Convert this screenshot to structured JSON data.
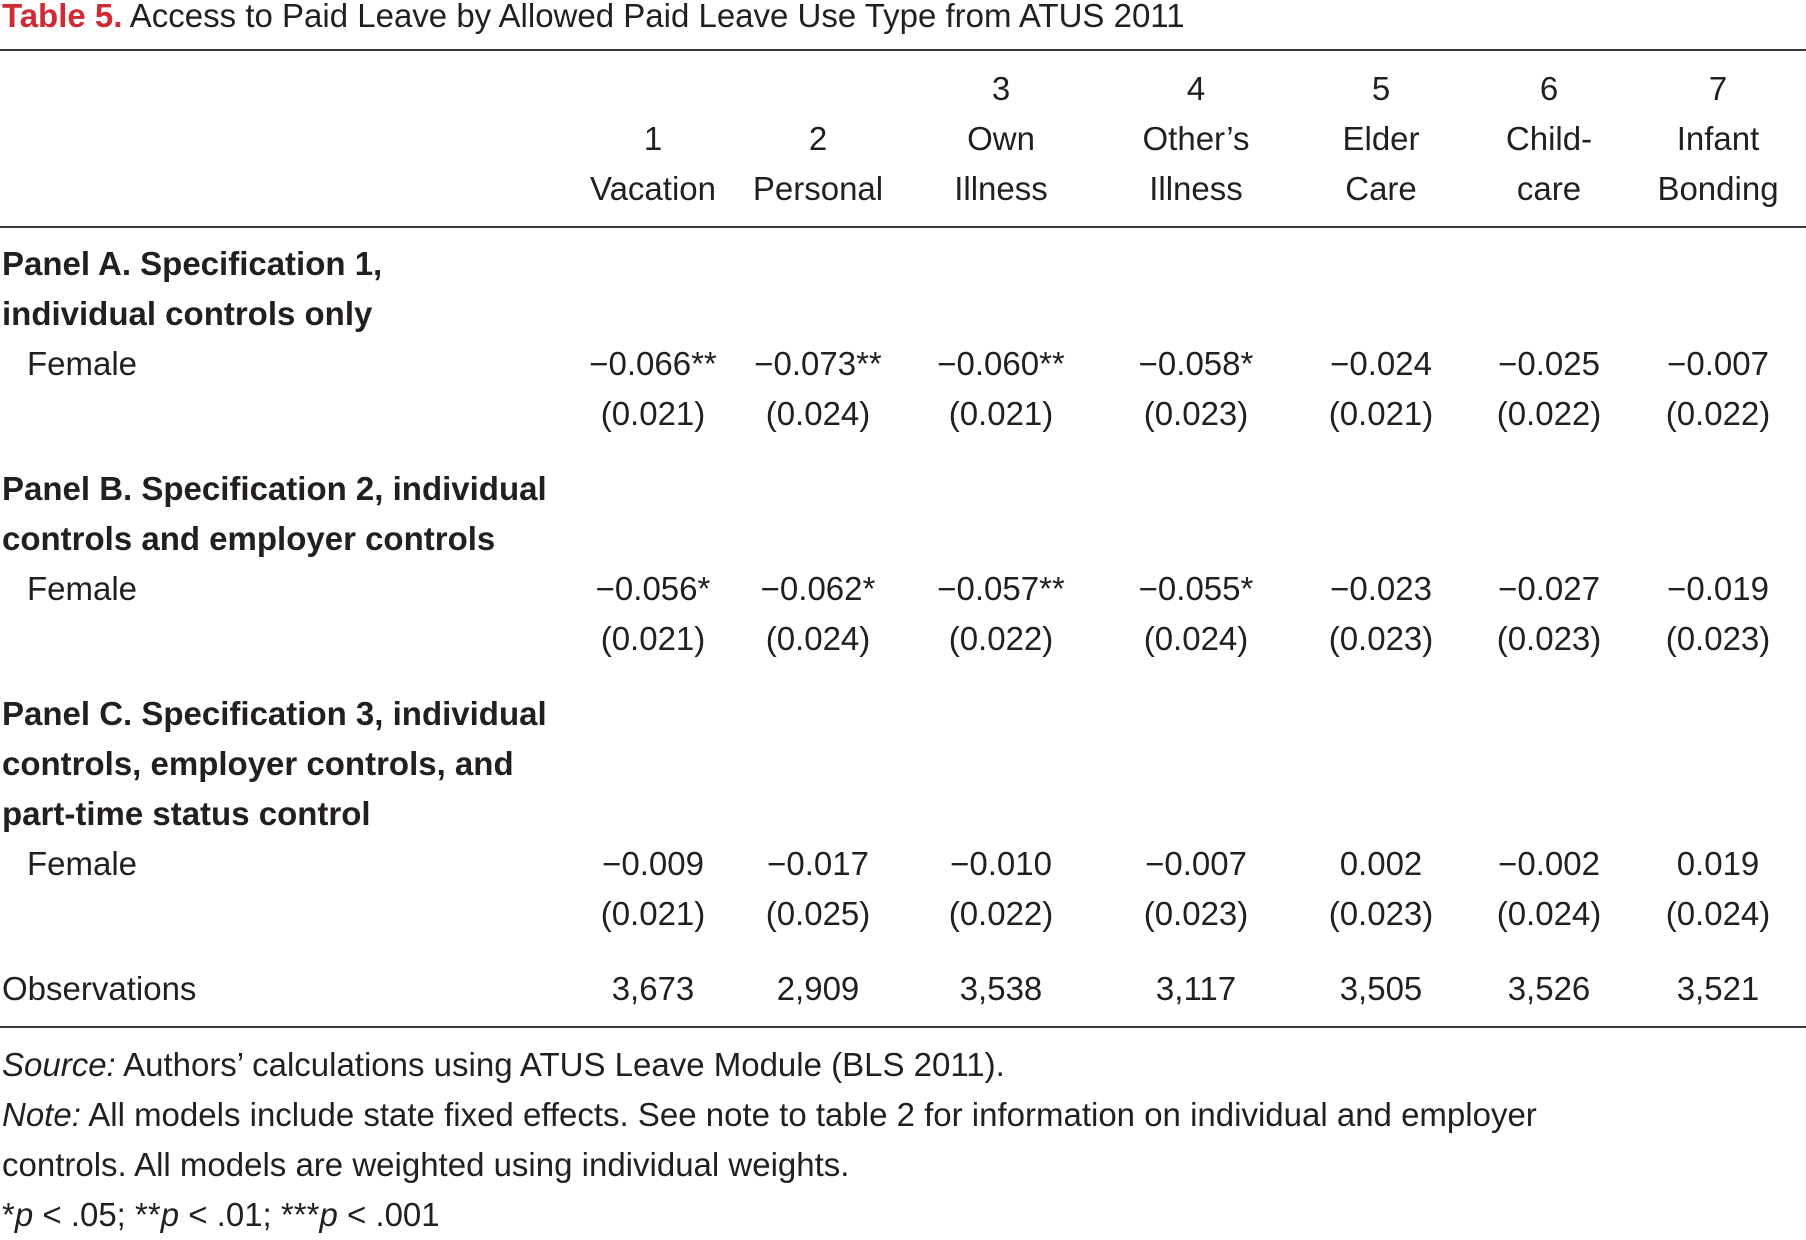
{
  "caption": {
    "label": "Table 5.",
    "title": "Access to Paid Leave by Allowed Paid Leave Use Type from ATUS 2011"
  },
  "columns": [
    {
      "num": "1",
      "l1": "",
      "l2": "Vacation"
    },
    {
      "num": "2",
      "l1": "",
      "l2": "Personal"
    },
    {
      "num": "3",
      "l1": "Own",
      "l2": "Illness"
    },
    {
      "num": "4",
      "l1": "Other’s",
      "l2": "Illness"
    },
    {
      "num": "5",
      "l1": "Elder",
      "l2": "Care"
    },
    {
      "num": "6",
      "l1": "Child-",
      "l2": "care"
    },
    {
      "num": "7",
      "l1": "Infant",
      "l2": "Bonding"
    }
  ],
  "panels": [
    {
      "title_lines": [
        "Panel A. Specification 1,",
        "individual controls only"
      ],
      "row_label": "Female",
      "coefs": [
        "−0.066**",
        "−0.073**",
        "−0.060**",
        "−0.058*",
        "−0.024",
        "−0.025",
        "−0.007"
      ],
      "ses": [
        "(0.021)",
        "(0.024)",
        "(0.021)",
        "(0.023)",
        "(0.021)",
        "(0.022)",
        "(0.022)"
      ]
    },
    {
      "title_lines": [
        "Panel B. Specification 2, individual",
        "controls and employer controls"
      ],
      "row_label": "Female",
      "coefs": [
        "−0.056*",
        "−0.062*",
        "−0.057**",
        "−0.055*",
        "−0.023",
        "−0.027",
        "−0.019"
      ],
      "ses": [
        "(0.021)",
        "(0.024)",
        "(0.022)",
        "(0.024)",
        "(0.023)",
        "(0.023)",
        "(0.023)"
      ]
    },
    {
      "title_lines": [
        "Panel C. Specification 3, individual",
        "controls, employer controls, and",
        "part-time status control"
      ],
      "row_label": "Female",
      "coefs": [
        "−0.009",
        "−0.017",
        "−0.010",
        "−0.007",
        "0.002",
        "−0.002",
        "0.019"
      ],
      "ses": [
        "(0.021)",
        "(0.025)",
        "(0.022)",
        "(0.023)",
        "(0.023)",
        "(0.024)",
        "(0.024)"
      ]
    }
  ],
  "observations": {
    "label": "Observations",
    "values": [
      "3,673",
      "2,909",
      "3,538",
      "3,117",
      "3,505",
      "3,526",
      "3,521"
    ]
  },
  "notes": {
    "source_label": "Source:",
    "source_text": " Authors’ calculations using ATUS Leave Module (BLS 2011).",
    "note_label": "Note:",
    "note_line1": " All models include state fixed effects. See note to table 2 for information on individual and employer",
    "note_line2": "controls. All models are weighted using individual weights.",
    "sig": {
      "s1": "*",
      "p1": "p",
      "t1": " < .05; ",
      "s2": "**",
      "p2": "p",
      "t2": " < .01; ",
      "s3": "***",
      "p3": "p",
      "t3": " < .001"
    }
  }
}
